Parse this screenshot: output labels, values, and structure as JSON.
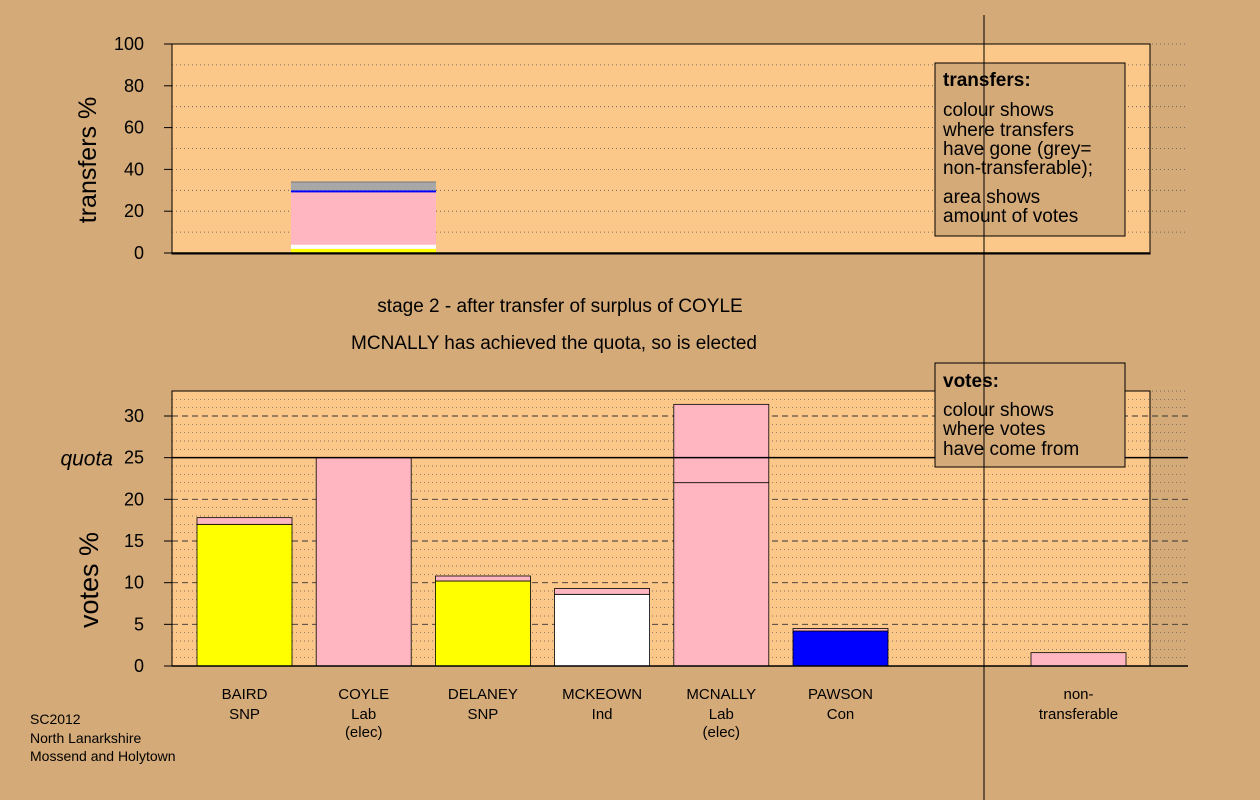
{
  "colors": {
    "background": "#d4aa78",
    "plot_bg": "#fcc88a",
    "SNP": "#ffff00",
    "Lab": "#ffb6c1",
    "Ind": "#ffffff",
    "Con": "#0000ff",
    "nontransferable": "#a8a8a8"
  },
  "titles": {
    "stage": "stage 2 - after transfer of surplus of COYLE",
    "outcome": "MCNALLY has achieved the quota, so is elected"
  },
  "footer": {
    "line1": "SC2012",
    "line2": "North Lanarkshire",
    "line3": "Mossend and Holytown"
  },
  "transfers_box": {
    "heading": "transfers:",
    "lines": [
      "colour shows",
      "where transfers",
      "have gone (grey=",
      "non-transferable);"
    ],
    "lines2": [
      "area shows",
      "amount of votes"
    ]
  },
  "votes_box": {
    "heading": "votes:",
    "lines": [
      "colour shows",
      "where votes",
      "have come from"
    ]
  },
  "chart_data": [
    {
      "type": "bar",
      "id": "transfers",
      "ylabel": "transfers %",
      "ylim": [
        0,
        100
      ],
      "yticks": [
        0,
        20,
        40,
        60,
        80,
        100
      ],
      "grid": "dotted",
      "segments": [
        {
          "party": "SNP",
          "value": 2
        },
        {
          "party": "Ind",
          "value": 2
        },
        {
          "party": "Lab",
          "value": 25
        },
        {
          "party": "Con",
          "value": 1
        },
        {
          "party": "nontransferable",
          "value": 4
        }
      ]
    },
    {
      "type": "bar",
      "id": "votes",
      "ylabel": "votes %",
      "ylim": [
        0,
        33
      ],
      "yticks": [
        0,
        5,
        10,
        15,
        20,
        25,
        30
      ],
      "quota": 25,
      "quota_label": "quota",
      "grid": "dashed",
      "categories": [
        {
          "name": "BAIRD",
          "party": "SNP",
          "note": "",
          "segments": [
            {
              "color": "SNP",
              "value": 17.0
            },
            {
              "color": "Lab",
              "value": 0.8
            }
          ]
        },
        {
          "name": "COYLE",
          "party": "Lab",
          "note": "(elec)",
          "segments": [
            {
              "color": "Lab",
              "value": 25.0
            }
          ]
        },
        {
          "name": "DELANEY",
          "party": "SNP",
          "note": "",
          "segments": [
            {
              "color": "SNP",
              "value": 10.2
            },
            {
              "color": "Lab",
              "value": 0.6
            }
          ]
        },
        {
          "name": "MCKEOWN",
          "party": "Ind",
          "note": "",
          "segments": [
            {
              "color": "Ind",
              "value": 8.6
            },
            {
              "color": "Lab",
              "value": 0.7
            }
          ]
        },
        {
          "name": "MCNALLY",
          "party": "Lab",
          "note": "(elec)",
          "segments": [
            {
              "color": "Lab",
              "value": 22.0
            },
            {
              "color": "Lab",
              "value": 9.4
            }
          ]
        },
        {
          "name": "PAWSON",
          "party": "Con",
          "note": "",
          "segments": [
            {
              "color": "Con",
              "value": 4.2
            },
            {
              "color": "Lab",
              "value": 0.3
            }
          ]
        }
      ],
      "nontransferable": {
        "name": "non-",
        "name2": "transferable",
        "segments": [
          {
            "color": "Lab",
            "value": 1.6
          }
        ]
      }
    }
  ]
}
